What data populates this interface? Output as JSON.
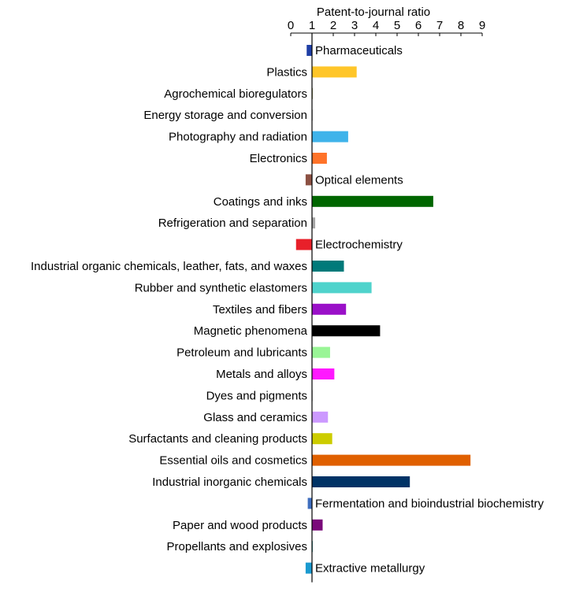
{
  "chart_data": {
    "type": "bar",
    "orientation": "horizontal",
    "xlabel": "Patent-to-journal ratio",
    "xlabel_position": "top",
    "xlim": [
      0,
      9
    ],
    "xticks": [
      "0",
      "1",
      "2",
      "3",
      "4",
      "5",
      "6",
      "7",
      "8",
      "9"
    ],
    "baseline": 1,
    "grid": false,
    "legend": "none",
    "categories": [
      "Pharmaceuticals",
      "Plastics",
      "Agrochemical bioregulators",
      "Energy storage and conversion",
      "Photography and radiation",
      "Electronics",
      "Optical elements",
      "Coatings and inks",
      "Refrigeration and separation",
      "Electrochemistry",
      "Industrial organic chemicals, leather, fats, and waxes",
      "Rubber and synthetic elastomers",
      "Textiles  and fibers",
      "Magnetic phenomena",
      "Petroleum and lubricants",
      "Metals and alloys",
      "Dyes and pigments",
      "Glass and ceramics",
      "Surfactants and cleaning products",
      "Essential oils and cosmetics",
      "Industrial inorganic chemicals",
      "Fermentation and bioindustrial biochemistry",
      "Paper and wood products",
      "Propellants and explosives",
      "Extractive metallurgy"
    ],
    "values": [
      0.75,
      3.1,
      1.0,
      1.0,
      2.7,
      1.7,
      0.7,
      6.7,
      1.15,
      0.25,
      2.5,
      3.8,
      2.6,
      4.2,
      1.85,
      2.05,
      1.0,
      1.75,
      1.95,
      8.45,
      5.6,
      0.8,
      1.5,
      1.03,
      0.7
    ],
    "colors": [
      "#1f3fa6",
      "#ffc629",
      "#9a9a6a",
      "#c0c0c0",
      "#3fb3ea",
      "#ff7329",
      "#8c5143",
      "#006600",
      "#a6a6a6",
      "#e8202a",
      "#007a7a",
      "#4fd3cc",
      "#9a10c8",
      "#000000",
      "#99f596",
      "#ff19ff",
      "#cccccc",
      "#cc99ff",
      "#cccc00",
      "#e06000",
      "#003366",
      "#3f6ebf",
      "#7a0a7a",
      "#4aa0a0",
      "#1a9ad0"
    ]
  }
}
